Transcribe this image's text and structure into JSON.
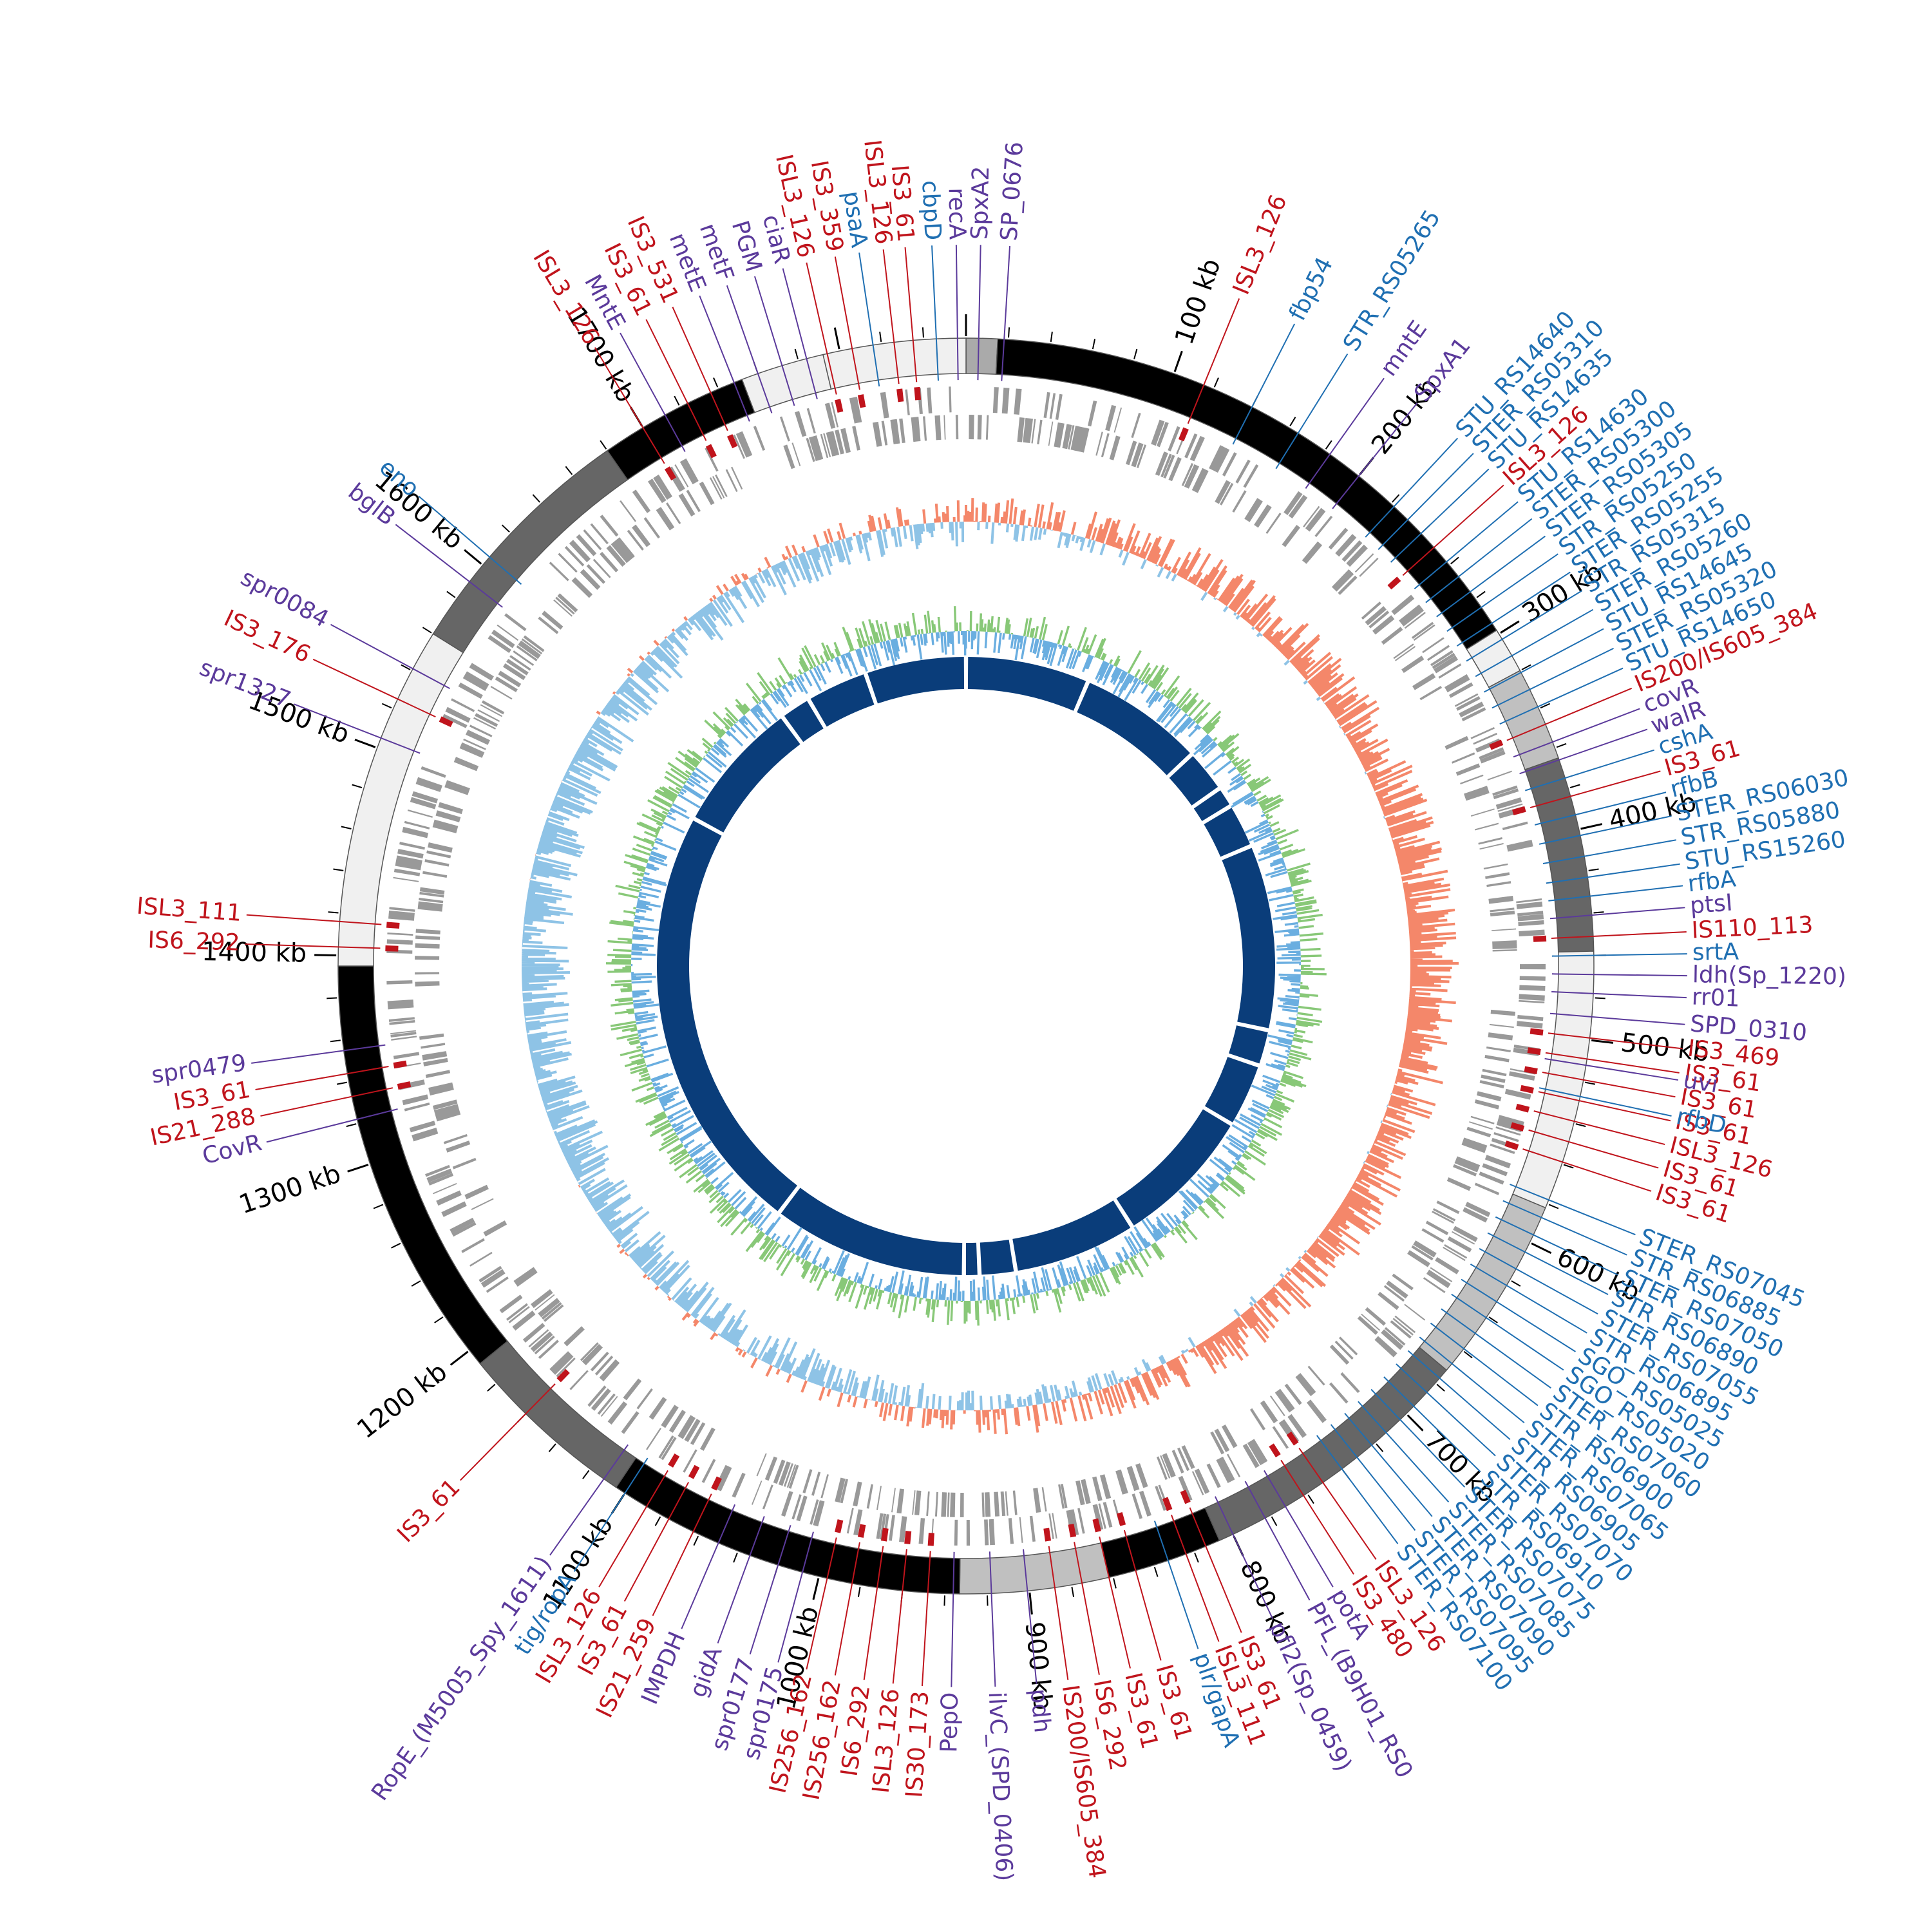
{
  "genome": {
    "length_kb": 1860,
    "ticks": [
      "100 kb",
      "200 kb",
      "300 kb",
      "400 kb",
      "500 kb",
      "600 kb",
      "700 kb",
      "800 kb",
      "900 kb",
      "1000 kb",
      "1100 kb",
      "1200 kb",
      "1300 kb",
      "1400 kb",
      "1500 kb",
      "1600 kb",
      "1700 kb"
    ]
  },
  "colors": {
    "is_element": "#c0141c",
    "virulence": "#5b3a9b",
    "locus": "#1f6fb2",
    "gc_low": "#8ec3e6",
    "gc_high": "#f4876a",
    "skew_pos": "#88c878",
    "skew_neg": "#6aaee0",
    "inner_ring": "#0a3d7a",
    "cds": "#999999"
  },
  "segments": [
    {
      "start": 0,
      "end": 15,
      "shade": "#aaaaaa"
    },
    {
      "start": 15,
      "end": 298,
      "shade": "#000000"
    },
    {
      "start": 298,
      "end": 320,
      "shade": "#f0f0f0"
    },
    {
      "start": 320,
      "end": 365,
      "shade": "#c0c0c0"
    },
    {
      "start": 365,
      "end": 458,
      "shade": "#666666"
    },
    {
      "start": 458,
      "end": 582,
      "shade": "#f0f0f0"
    },
    {
      "start": 582,
      "end": 672,
      "shade": "#c0c0c0"
    },
    {
      "start": 672,
      "end": 807,
      "shade": "#666666"
    },
    {
      "start": 807,
      "end": 862,
      "shade": "#000000"
    },
    {
      "start": 862,
      "end": 933,
      "shade": "#c0c0c0"
    },
    {
      "start": 933,
      "end": 1105,
      "shade": "#000000"
    },
    {
      "start": 1105,
      "end": 1192,
      "shade": "#666666"
    },
    {
      "start": 1192,
      "end": 1395,
      "shade": "#000000"
    },
    {
      "start": 1395,
      "end": 1560,
      "shade": "#f0f0f0"
    },
    {
      "start": 1560,
      "end": 1680,
      "shade": "#666666"
    },
    {
      "start": 1680,
      "end": 1752,
      "shade": "#000000"
    },
    {
      "start": 1752,
      "end": 1792,
      "shade": "#f0f0f0"
    },
    {
      "start": 1792,
      "end": 1860,
      "shade": "#f0f0f0"
    }
  ],
  "labels": [
    {
      "text": "ISL3_126",
      "kb": 115,
      "cat": "is"
    },
    {
      "text": "fbp54",
      "kb": 140,
      "cat": "locus"
    },
    {
      "text": "STR_RS05265",
      "kb": 165,
      "cat": "locus"
    },
    {
      "text": "mntE",
      "kb": 183,
      "cat": "vir"
    },
    {
      "text": "SpxA1",
      "kb": 200,
      "cat": "vir"
    },
    {
      "text": "STU_RS14640",
      "kb": 222,
      "cat": "locus"
    },
    {
      "text": "STER_RS05310",
      "kb": 231,
      "cat": "locus"
    },
    {
      "text": "STU_RS14635",
      "kb": 240,
      "cat": "locus"
    },
    {
      "text": "ISL3_126",
      "kb": 249,
      "cat": "is"
    },
    {
      "text": "STU_RS14630",
      "kb": 258,
      "cat": "locus"
    },
    {
      "text": "STER_RS05300",
      "kb": 267,
      "cat": "locus"
    },
    {
      "text": "STER_RS05305",
      "kb": 276,
      "cat": "locus"
    },
    {
      "text": "STR_RS05250",
      "kb": 285,
      "cat": "locus"
    },
    {
      "text": "STER_RS05255",
      "kb": 294,
      "cat": "locus"
    },
    {
      "text": "STR_RS05315",
      "kb": 303,
      "cat": "locus"
    },
    {
      "text": "STER_RS05260",
      "kb": 312,
      "cat": "locus"
    },
    {
      "text": "STU_RS14645",
      "kb": 321,
      "cat": "locus"
    },
    {
      "text": "STER_RS05320",
      "kb": 330,
      "cat": "locus"
    },
    {
      "text": "STU_RS14650",
      "kb": 339,
      "cat": "locus"
    },
    {
      "text": "IS200/IS605_384",
      "kb": 348,
      "cat": "is"
    },
    {
      "text": "covR",
      "kb": 357,
      "cat": "vir"
    },
    {
      "text": "walR",
      "kb": 366,
      "cat": "vir"
    },
    {
      "text": "cshA",
      "kb": 375,
      "cat": "locus"
    },
    {
      "text": "IS3_61",
      "kb": 384,
      "cat": "is"
    },
    {
      "text": "rfbB",
      "kb": 393,
      "cat": "locus"
    },
    {
      "text": "STER_RS06030",
      "kb": 403,
      "cat": "locus"
    },
    {
      "text": "STR_RS05880",
      "kb": 413,
      "cat": "locus"
    },
    {
      "text": "STU_RS15260",
      "kb": 423,
      "cat": "locus"
    },
    {
      "text": "rfbA",
      "kb": 432,
      "cat": "locus"
    },
    {
      "text": "ptsI",
      "kb": 441,
      "cat": "vir"
    },
    {
      "text": "IS110_113",
      "kb": 451,
      "cat": "is"
    },
    {
      "text": "srtA",
      "kb": 460,
      "cat": "locus"
    },
    {
      "text": "ldh(Sp_1220)",
      "kb": 469,
      "cat": "vir"
    },
    {
      "text": "rr01",
      "kb": 478,
      "cat": "vir"
    },
    {
      "text": "SPD_0310",
      "kb": 489,
      "cat": "vir"
    },
    {
      "text": "IS3_469",
      "kb": 499,
      "cat": "is"
    },
    {
      "text": "IS3_61",
      "kb": 509,
      "cat": "is"
    },
    {
      "text": "IS3_61",
      "kb": 519,
      "cat": "is"
    },
    {
      "text": "IS3_61",
      "kb": 529,
      "cat": "is"
    },
    {
      "text": "ISL3_126",
      "kb": 539,
      "cat": "is"
    },
    {
      "text": "IS3_61",
      "kb": 549,
      "cat": "is"
    },
    {
      "text": "IS3_61",
      "kb": 559,
      "cat": "is"
    },
    {
      "text": "STER_RS07045",
      "kb": 578,
      "cat": "locus"
    },
    {
      "text": "STR_RS06885",
      "kb": 587,
      "cat": "locus"
    },
    {
      "text": "STER_RS07050",
      "kb": 596,
      "cat": "locus"
    },
    {
      "text": "STR_RS06890",
      "kb": 605,
      "cat": "locus"
    },
    {
      "text": "STER_RS07055",
      "kb": 614,
      "cat": "locus"
    },
    {
      "text": "STR_RS06895",
      "kb": 623,
      "cat": "locus"
    },
    {
      "text": "SGO_RS05025",
      "kb": 632,
      "cat": "locus"
    },
    {
      "text": "SGO_RS05020",
      "kb": 641,
      "cat": "locus"
    },
    {
      "text": "STER_RS07060",
      "kb": 650,
      "cat": "locus"
    },
    {
      "text": "STR_RS06900",
      "kb": 659,
      "cat": "locus"
    },
    {
      "text": "STER_RS07065",
      "kb": 668,
      "cat": "locus"
    },
    {
      "text": "STR_RS06905",
      "kb": 677,
      "cat": "locus"
    },
    {
      "text": "STER_RS07070",
      "kb": 686,
      "cat": "locus"
    },
    {
      "text": "STR_RS06910",
      "kb": 695,
      "cat": "locus"
    },
    {
      "text": "STER_RS07075",
      "kb": 704,
      "cat": "locus"
    },
    {
      "text": "STER_RS07085",
      "kb": 713,
      "cat": "locus"
    },
    {
      "text": "STER_RS07090",
      "kb": 722,
      "cat": "locus"
    },
    {
      "text": "STER_RS07095",
      "kb": 731,
      "cat": "locus"
    },
    {
      "text": "STER_RS07100",
      "kb": 740,
      "cat": "locus"
    },
    {
      "text": "ISL3_126",
      "kb": 751,
      "cat": "is"
    },
    {
      "text": "IS3_480",
      "kb": 762,
      "cat": "is"
    },
    {
      "text": "potA",
      "kb": 772,
      "cat": "vir"
    },
    {
      "text": "PFL_(B9H01_RS0",
      "kb": 783,
      "cat": "vir"
    },
    {
      "text": "pfl2(Sp_0459)",
      "kb": 800,
      "cat": "vir"
    },
    {
      "text": "IS3_61",
      "kb": 814,
      "cat": "is"
    },
    {
      "text": "ISL3_111",
      "kb": 824,
      "cat": "is"
    },
    {
      "text": "plr/gapA",
      "kb": 833,
      "cat": "locus"
    },
    {
      "text": "IS3_61",
      "kb": 849,
      "cat": "is"
    },
    {
      "text": "IS3_61",
      "kb": 862,
      "cat": "is"
    },
    {
      "text": "IS6_292",
      "kb": 875,
      "cat": "is"
    },
    {
      "text": "IS200/IS605_384",
      "kb": 888,
      "cat": "is"
    },
    {
      "text": "pdh",
      "kb": 901,
      "cat": "vir"
    },
    {
      "text": "ilvC_(SPD_0406)",
      "kb": 918,
      "cat": "vir"
    },
    {
      "text": "PepO",
      "kb": 936,
      "cat": "vir"
    },
    {
      "text": "IS30_173",
      "kb": 948,
      "cat": "is"
    },
    {
      "text": "ISL3_126",
      "kb": 960,
      "cat": "is"
    },
    {
      "text": "IS6_292",
      "kb": 972,
      "cat": "is"
    },
    {
      "text": "IS256_162",
      "kb": 984,
      "cat": "is"
    },
    {
      "text": "IS256_162",
      "kb": 996,
      "cat": "is"
    },
    {
      "text": "spr0175",
      "kb": 1008,
      "cat": "vir"
    },
    {
      "text": "spr0177",
      "kb": 1020,
      "cat": "vir"
    },
    {
      "text": "gidA",
      "kb": 1034,
      "cat": "vir"
    },
    {
      "text": "IMPDH",
      "kb": 1050,
      "cat": "vir"
    },
    {
      "text": "IS21_259",
      "kb": 1063,
      "cat": "is"
    },
    {
      "text": "IS3_61",
      "kb": 1076,
      "cat": "is"
    },
    {
      "text": "ISL3_126",
      "kb": 1088,
      "cat": "is"
    },
    {
      "text": "tig/ropA",
      "kb": 1100,
      "cat": "locus"
    },
    {
      "text": "RopE_(M5005_Spy_1611)",
      "kb": 1112,
      "cat": "vir"
    },
    {
      "text": "IS3_61",
      "kb": 1160,
      "cat": "is"
    },
    {
      "text": "CovR",
      "kb": 1322,
      "cat": "vir"
    },
    {
      "text": "IS21_288",
      "kb": 1333,
      "cat": "is"
    },
    {
      "text": "IS3_61",
      "kb": 1344,
      "cat": "is"
    },
    {
      "text": "spr0479",
      "kb": 1355,
      "cat": "vir"
    },
    {
      "text": "IS6_292",
      "kb": 1404,
      "cat": "is"
    },
    {
      "text": "ISL3_111",
      "kb": 1416,
      "cat": "is"
    },
    {
      "text": "spr1327",
      "kb": 1505,
      "cat": "vir"
    },
    {
      "text": "IS3_176",
      "kb": 1525,
      "cat": "is"
    },
    {
      "text": "spr0084",
      "kb": 1541,
      "cat": "vir"
    },
    {
      "text": "bglB",
      "kb": 1590,
      "cat": "vir"
    },
    {
      "text": "eno",
      "kb": 1605,
      "cat": "locus"
    },
    {
      "text": "ISL3_126",
      "kb": 1700,
      "cat": "is"
    },
    {
      "text": "MntE",
      "kb": 1712,
      "cat": "vir"
    },
    {
      "text": "IS3_61",
      "kb": 1724,
      "cat": "is"
    },
    {
      "text": "IS3_531",
      "kb": 1736,
      "cat": "is"
    },
    {
      "text": "metE",
      "kb": 1748,
      "cat": "vir"
    },
    {
      "text": "metF",
      "kb": 1760,
      "cat": "vir"
    },
    {
      "text": "PGM",
      "kb": 1772,
      "cat": "vir"
    },
    {
      "text": "ciaR",
      "kb": 1784,
      "cat": "vir"
    },
    {
      "text": "ISL3_126",
      "kb": 1794,
      "cat": "is"
    },
    {
      "text": "IS3_359",
      "kb": 1806,
      "cat": "is"
    },
    {
      "text": "psaA",
      "kb": 1816,
      "cat": "locus"
    },
    {
      "text": "ISL3_126",
      "kb": 1826,
      "cat": "is"
    },
    {
      "text": "IS3_61",
      "kb": 1835,
      "cat": "is"
    },
    {
      "text": "cbpD",
      "kb": 1846,
      "cat": "locus"
    },
    {
      "text": "recA",
      "kb": 1856,
      "cat": "vir"
    },
    {
      "text": "SpxA2",
      "kb": 6,
      "cat": "vir"
    },
    {
      "text": "SP_0676",
      "kb": 18,
      "cat": "vir"
    },
    {
      "text": "uvi",
      "kb": 512,
      "cat": "vir"
    },
    {
      "text": "rfbD",
      "kb": 527,
      "cat": "locus"
    }
  ],
  "inner_blocks": [
    [
      2,
      118
    ],
    [
      122,
      240
    ],
    [
      244,
      282
    ],
    [
      286,
      302
    ],
    [
      306,
      345
    ],
    [
      349,
      525
    ],
    [
      529,
      560
    ],
    [
      564,
      622
    ],
    [
      626,
      760
    ],
    [
      764,
      880
    ],
    [
      884,
      915
    ],
    [
      919,
      930
    ],
    [
      934,
      1120
    ],
    [
      1124,
      1540
    ],
    [
      1544,
      1670
    ],
    [
      1674,
      1700
    ],
    [
      1704,
      1760
    ],
    [
      1764,
      1858
    ]
  ]
}
